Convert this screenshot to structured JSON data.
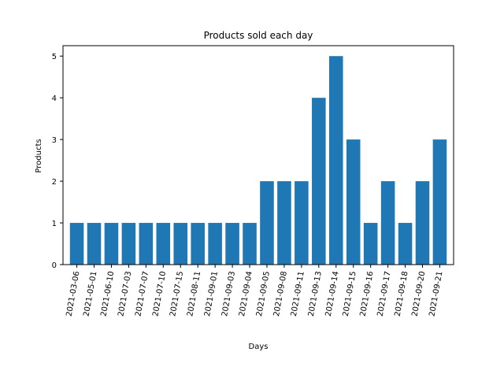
{
  "chart_data": {
    "type": "bar",
    "title": "Products sold each day",
    "xlabel": "Days",
    "ylabel": "Products",
    "categories": [
      "2021-03-06",
      "2021-05-01",
      "2021-06-10",
      "2021-07-03",
      "2021-07-07",
      "2021-07-10",
      "2021-07-15",
      "2021-08-11",
      "2021-09-01",
      "2021-09-03",
      "2021-09-04",
      "2021-09-05",
      "2021-09-08",
      "2021-09-11",
      "2021-09-13",
      "2021-09-14",
      "2021-09-15",
      "2021-09-16",
      "2021-09-17",
      "2021-09-18",
      "2021-09-20",
      "2021-09-21"
    ],
    "values": [
      1,
      1,
      1,
      1,
      1,
      1,
      1,
      1,
      1,
      1,
      1,
      2,
      2,
      2,
      4,
      5,
      3,
      1,
      2,
      1,
      2,
      3
    ],
    "ylim": [
      0,
      5.25
    ],
    "yticks": [
      0,
      1,
      2,
      3,
      4,
      5
    ],
    "grid": false,
    "bar_color": "#1f77b4",
    "xtick_rotation": "vertical-ish (rotated ~80°)"
  }
}
